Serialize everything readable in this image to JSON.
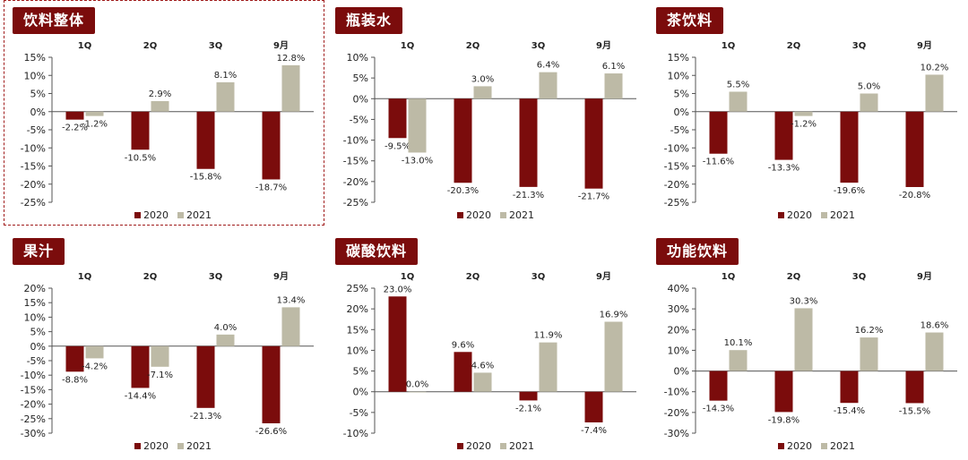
{
  "legend": [
    "2020",
    "2021"
  ],
  "colors": {
    "s2020": "#7b0c0c",
    "s2021": "#bdbaa6",
    "axis": "#555555",
    "title_bg": "#7b0c0c"
  },
  "chart_data": [
    {
      "type": "bar",
      "title": "饮料整体",
      "highlighted": true,
      "categories": [
        "1Q",
        "2Q",
        "3Q",
        "9月"
      ],
      "ylim": [
        -25,
        15
      ],
      "ystep": 5,
      "ytick_labels": [
        "15%",
        "10%",
        "5%",
        "0%",
        "-5%",
        "-10%",
        "-15%",
        "-20%",
        "-25%"
      ],
      "series": [
        {
          "name": "2020",
          "values": [
            -2.2,
            -10.5,
            -15.8,
            -18.7
          ],
          "labels": [
            "-2.2%",
            "-10.5%",
            "-15.8%",
            "-18.7%"
          ]
        },
        {
          "name": "2021",
          "values": [
            -1.2,
            2.9,
            8.1,
            12.8
          ],
          "labels": [
            "-1.2%",
            "2.9%",
            "8.1%",
            "12.8%"
          ]
        }
      ],
      "legend_position": "bottom"
    },
    {
      "type": "bar",
      "title": "瓶装水",
      "highlighted": false,
      "categories": [
        "1Q",
        "2Q",
        "3Q",
        "9月"
      ],
      "ylim": [
        -25,
        10
      ],
      "ystep": 5,
      "ytick_labels": [
        "10%",
        "5%",
        "0%",
        "-5%",
        "-10%",
        "-15%",
        "-20%",
        "-25%"
      ],
      "series": [
        {
          "name": "2020",
          "values": [
            -9.5,
            -20.3,
            -21.3,
            -21.7
          ],
          "labels": [
            "-9.5%",
            "-20.3%",
            "-21.3%",
            "-21.7%"
          ]
        },
        {
          "name": "2021",
          "values": [
            -13.0,
            3.0,
            6.4,
            6.1
          ],
          "labels": [
            "-13.0%",
            "3.0%",
            "6.4%",
            "6.1%"
          ]
        }
      ],
      "legend_position": "bottom"
    },
    {
      "type": "bar",
      "title": "茶饮料",
      "highlighted": false,
      "categories": [
        "1Q",
        "2Q",
        "3Q",
        "9月"
      ],
      "ylim": [
        -25,
        15
      ],
      "ystep": 5,
      "ytick_labels": [
        "15%",
        "10%",
        "5%",
        "0%",
        "-5%",
        "-10%",
        "-15%",
        "-20%",
        "-25%"
      ],
      "series": [
        {
          "name": "2020",
          "values": [
            -11.6,
            -13.3,
            -19.6,
            -20.8
          ],
          "labels": [
            "-11.6%",
            "-13.3%",
            "-19.6%",
            "-20.8%"
          ]
        },
        {
          "name": "2021",
          "values": [
            5.5,
            -1.2,
            5.0,
            10.2
          ],
          "labels": [
            "5.5%",
            "-1.2%",
            "5.0%",
            "10.2%"
          ]
        }
      ],
      "legend_position": "bottom"
    },
    {
      "type": "bar",
      "title": "果汁",
      "highlighted": false,
      "categories": [
        "1Q",
        "2Q",
        "3Q",
        "9月"
      ],
      "ylim": [
        -30,
        20
      ],
      "ystep": 5,
      "ytick_labels": [
        "20%",
        "15%",
        "10%",
        "5%",
        "0%",
        "-5%",
        "-10%",
        "-15%",
        "-20%",
        "-25%",
        "-30%"
      ],
      "series": [
        {
          "name": "2020",
          "values": [
            -8.8,
            -14.4,
            -21.3,
            -26.6
          ],
          "labels": [
            "-8.8%",
            "-14.4%",
            "-21.3%",
            "-26.6%"
          ]
        },
        {
          "name": "2021",
          "values": [
            -4.2,
            -7.1,
            4.0,
            13.4
          ],
          "labels": [
            "-4.2%",
            "-7.1%",
            "4.0%",
            "13.4%"
          ]
        }
      ],
      "legend_position": "bottom"
    },
    {
      "type": "bar",
      "title": "碳酸饮料",
      "highlighted": false,
      "categories": [
        "1Q",
        "2Q",
        "3Q",
        "9月"
      ],
      "ylim": [
        -10,
        25
      ],
      "ystep": 5,
      "ytick_labels": [
        "25%",
        "20%",
        "15%",
        "10%",
        "5%",
        "0%",
        "-5%",
        "-10%"
      ],
      "series": [
        {
          "name": "2020",
          "values": [
            23.0,
            9.6,
            -2.1,
            -7.4
          ],
          "labels": [
            "23.0%",
            "9.6%",
            "-2.1%",
            "-7.4%"
          ]
        },
        {
          "name": "2021",
          "values": [
            0.0,
            4.6,
            11.9,
            16.9
          ],
          "labels": [
            "0.0%",
            "4.6%",
            "11.9%",
            "16.9%"
          ]
        }
      ],
      "legend_position": "bottom"
    },
    {
      "type": "bar",
      "title": "功能饮料",
      "highlighted": false,
      "categories": [
        "1Q",
        "2Q",
        "3Q",
        "9月"
      ],
      "ylim": [
        -30,
        40
      ],
      "ystep": 10,
      "ytick_labels": [
        "40%",
        "30%",
        "20%",
        "10%",
        "0%",
        "-10%",
        "-20%",
        "-30%"
      ],
      "series": [
        {
          "name": "2020",
          "values": [
            -14.3,
            -19.8,
            -15.4,
            -15.5
          ],
          "labels": [
            "-14.3%",
            "-19.8%",
            "-15.4%",
            "-15.5%"
          ]
        },
        {
          "name": "2021",
          "values": [
            10.1,
            30.3,
            16.2,
            18.6
          ],
          "labels": [
            "10.1%",
            "30.3%",
            "16.2%",
            "18.6%"
          ]
        }
      ],
      "legend_position": "bottom"
    }
  ]
}
